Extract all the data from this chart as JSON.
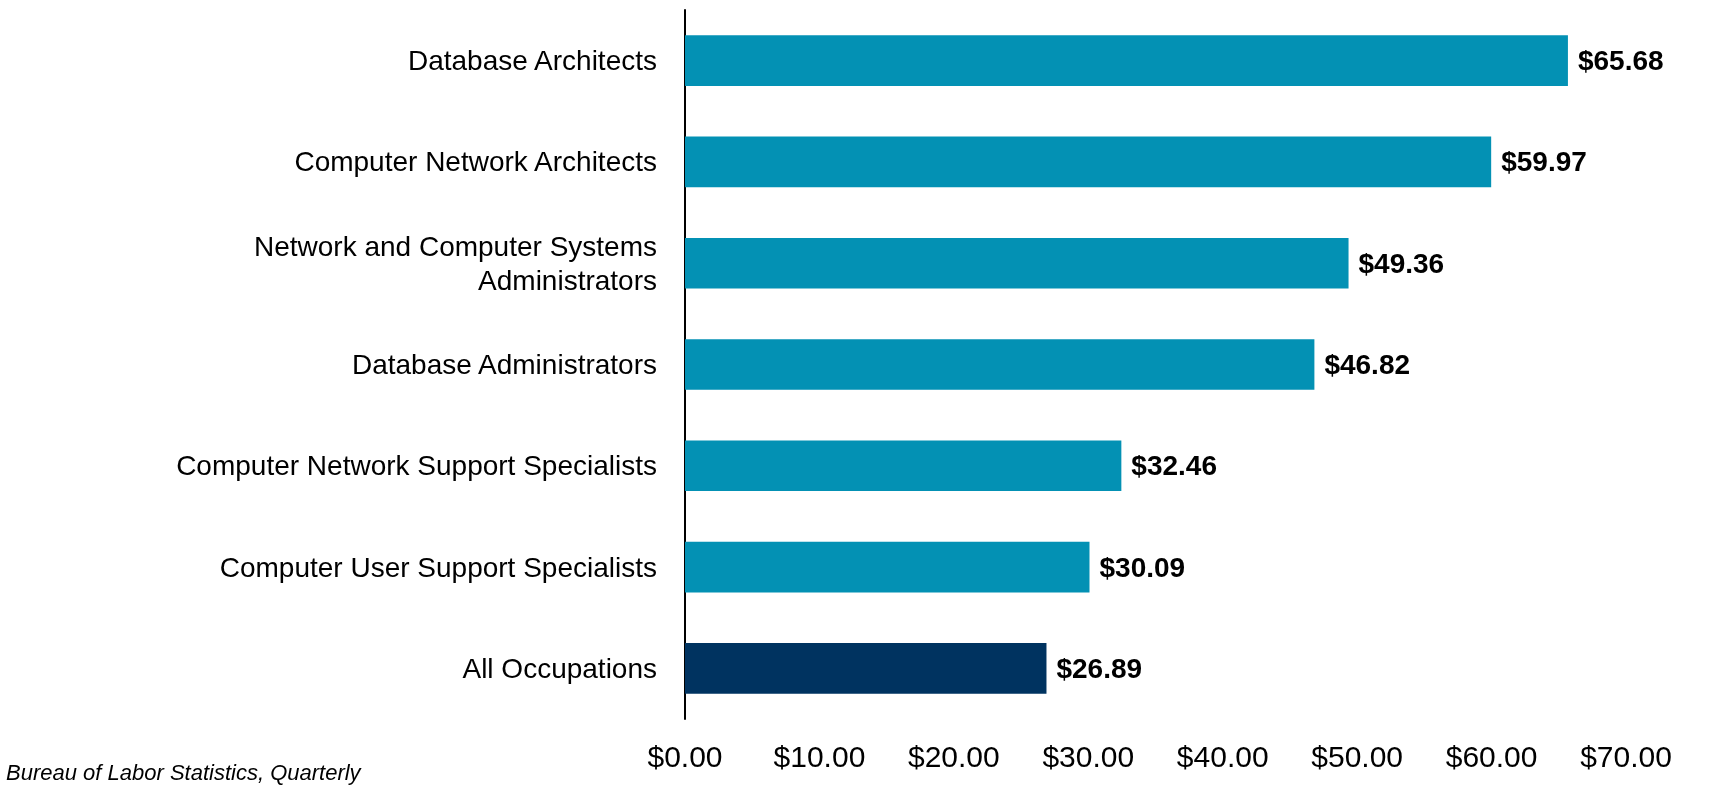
{
  "chart_data": {
    "type": "bar",
    "orientation": "horizontal",
    "categories": [
      "Database Architects",
      "Computer Network Architects",
      "Network and Computer Systems\nAdministrators",
      "Database Administrators",
      "Computer Network Support Specialists",
      "Computer User Support Specialists",
      "All Occupations"
    ],
    "values": [
      65.68,
      59.97,
      49.36,
      46.82,
      32.46,
      30.09,
      26.89
    ],
    "colors": [
      "#0391b4",
      "#0391b4",
      "#0391b4",
      "#0391b4",
      "#0391b4",
      "#0391b4",
      "#003360"
    ],
    "value_labels": [
      "$65.68",
      "$59.97",
      "$49.36",
      "$46.82",
      "$32.46",
      "$30.09",
      "$26.89"
    ],
    "xlim": [
      0,
      70
    ],
    "xticks": [
      {
        "value": 0,
        "label": "$0.00"
      },
      {
        "value": 10,
        "label": "$10.00"
      },
      {
        "value": 20,
        "label": "$20.00"
      },
      {
        "value": 30,
        "label": "$30.00"
      },
      {
        "value": 40,
        "label": "$40.00"
      },
      {
        "value": 50,
        "label": "$50.00"
      },
      {
        "value": 60,
        "label": "$60.00"
      },
      {
        "value": 70,
        "label": "$70.00"
      }
    ],
    "grid": false,
    "annotations": [
      "Bureau of Labor Statistics, Quarterly"
    ]
  }
}
